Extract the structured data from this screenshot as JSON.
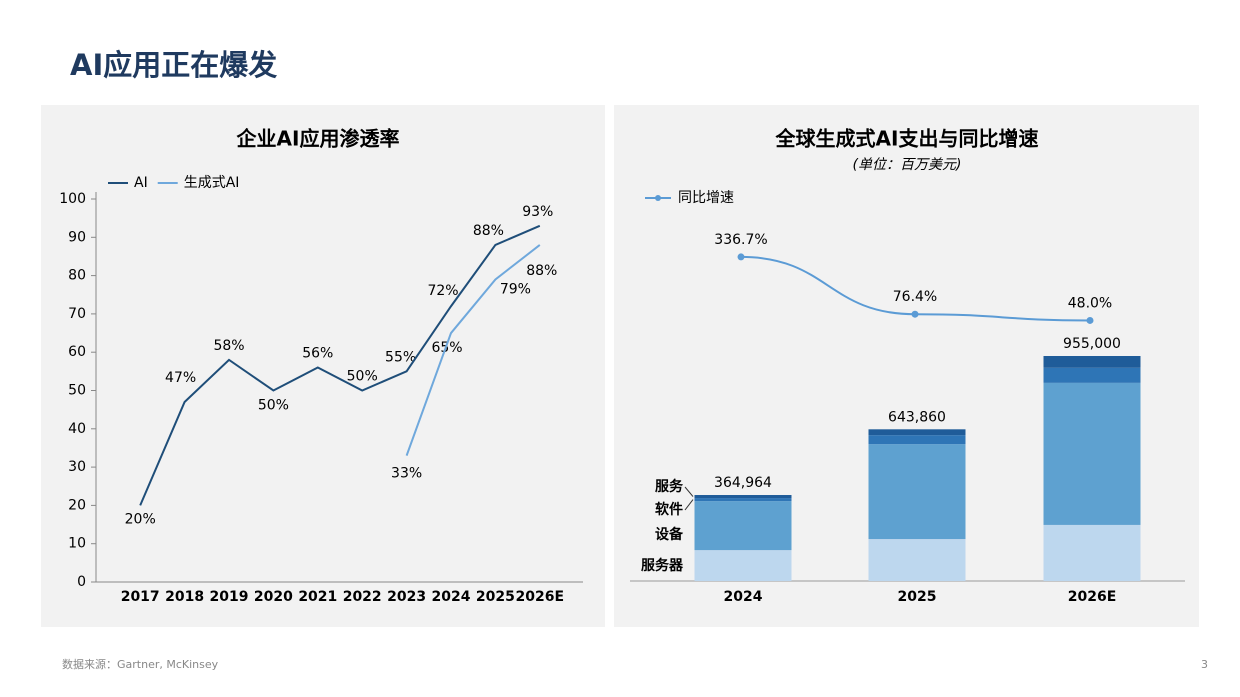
{
  "title": "AI应用正在爆发",
  "source": "数据来源：Gartner, McKinsey",
  "page_number": "3",
  "chart_data": [
    {
      "type": "line",
      "title": "企业AI应用渗透率",
      "categories": [
        "2017",
        "2018",
        "2019",
        "2020",
        "2021",
        "2022",
        "2023",
        "2024",
        "2025",
        "2026E"
      ],
      "series": [
        {
          "name": "AI",
          "color": "#1f4e79",
          "values": [
            20,
            47,
            58,
            50,
            56,
            50,
            55,
            72,
            88,
            93
          ],
          "value_labels": [
            "20%",
            "47%",
            "58%",
            "50%",
            "56%",
            "50%",
            "55%",
            "72%",
            "88%",
            "93%"
          ]
        },
        {
          "name": "生成式AI",
          "color": "#6fa8dc",
          "values": [
            null,
            null,
            null,
            null,
            null,
            null,
            33,
            65,
            79,
            88
          ],
          "value_labels": [
            null,
            null,
            null,
            null,
            null,
            null,
            "33%",
            "65%",
            "79%",
            "88%"
          ]
        }
      ],
      "ylim": [
        0,
        100
      ],
      "yticks": [
        0,
        10,
        20,
        30,
        40,
        50,
        60,
        70,
        80,
        90,
        100
      ],
      "legend": "top-left"
    },
    {
      "type": "stacked-bar",
      "title": "全球生成式AI支出与同比增速",
      "subtitle": "(单位：百万美元)",
      "categories": [
        "2024",
        "2025",
        "2026E"
      ],
      "series": [
        {
          "name": "服务器",
          "color": "#bdd7ee",
          "values": [
            131000,
            178000,
            238000
          ]
        },
        {
          "name": "设备",
          "color": "#5ea1d0",
          "values": [
            208000,
            403000,
            603000
          ]
        },
        {
          "name": "软件",
          "color": "#2e75b6",
          "values": [
            13000,
            38000,
            64000
          ]
        },
        {
          "name": "服务",
          "color": "#1f5c99",
          "values": [
            12964,
            24860,
            50000
          ]
        }
      ],
      "totals": [
        364964,
        643860,
        955000
      ],
      "total_labels": [
        "364,964",
        "643,860",
        "955,000"
      ],
      "ylim": [
        0,
        1000000
      ],
      "growth": {
        "name": "同比增速",
        "color": "#5b9bd5",
        "values": [
          336.7,
          76.4,
          48.0
        ],
        "value_labels": [
          "336.7%",
          "76.4%",
          "48.0%"
        ],
        "axis": "y2"
      },
      "y2lim": [
        0,
        1000
      ]
    }
  ]
}
